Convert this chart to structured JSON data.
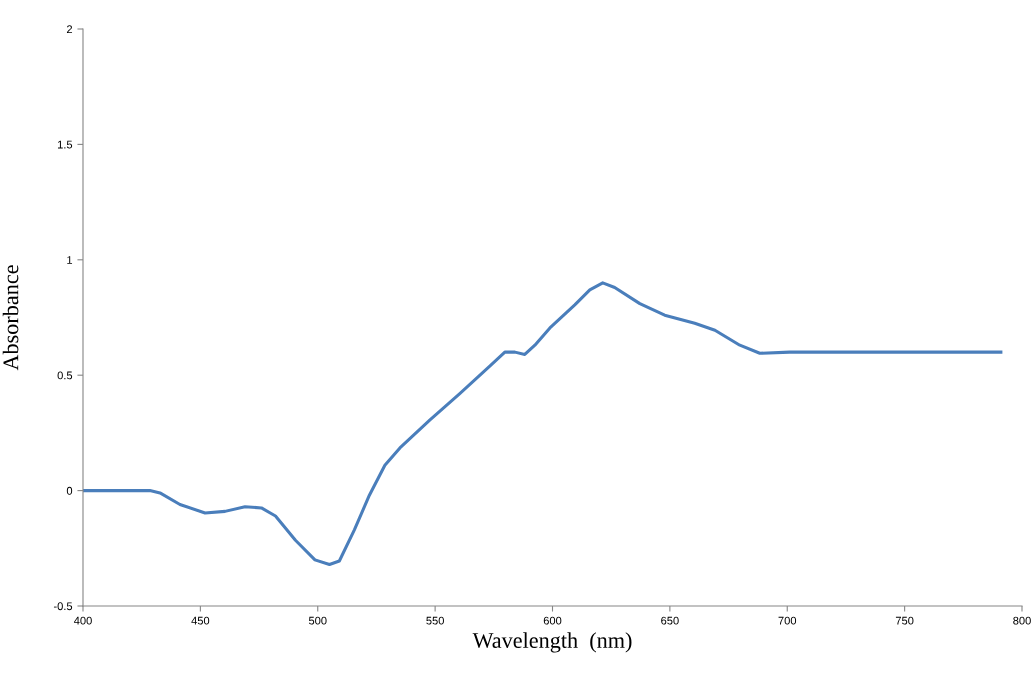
{
  "chart_data": {
    "type": "line",
    "xlabel": "Wavelength  (nm)",
    "ylabel": "Absorbance",
    "xlim": [
      400,
      800
    ],
    "xticks": [
      400,
      450,
      500,
      550,
      600,
      650,
      700,
      750,
      800
    ],
    "ylim": [
      -0.5,
      2
    ],
    "yticks": [
      {
        "value": -0.5,
        "label": "-0.5"
      },
      0,
      0.5,
      1,
      1.5,
      2
    ],
    "grid": false,
    "legend": false,
    "marker": "none",
    "line_style": "solid",
    "series": [
      {
        "color": "#4a7ebb",
        "x": [
          400,
          428.5,
          432.8,
          441.3,
          452,
          460.5,
          469,
          476,
          482,
          490.5,
          498.8,
          505,
          509.2,
          515.6,
          522,
          528.6,
          535,
          547.7,
          560.5,
          573.4,
          579.7,
          584,
          588.2,
          592.5,
          598.9,
          609.5,
          615.9,
          621.4,
          626.5,
          637.2,
          647.8,
          660.6,
          669.2,
          679.8,
          688.3,
          701,
          791
        ],
        "values": [
          0,
          0,
          -0.01,
          -0.06,
          -0.097,
          -0.09,
          -0.07,
          -0.075,
          -0.11,
          -0.215,
          -0.3,
          -0.32,
          -0.305,
          -0.17,
          -0.02,
          0.11,
          0.185,
          0.305,
          0.42,
          0.54,
          0.6,
          0.6,
          0.59,
          0.63,
          0.705,
          0.805,
          0.87,
          0.9,
          0.88,
          0.81,
          0.76,
          0.725,
          0.695,
          0.63,
          0.595,
          0.6,
          0.6
        ]
      }
    ]
  }
}
